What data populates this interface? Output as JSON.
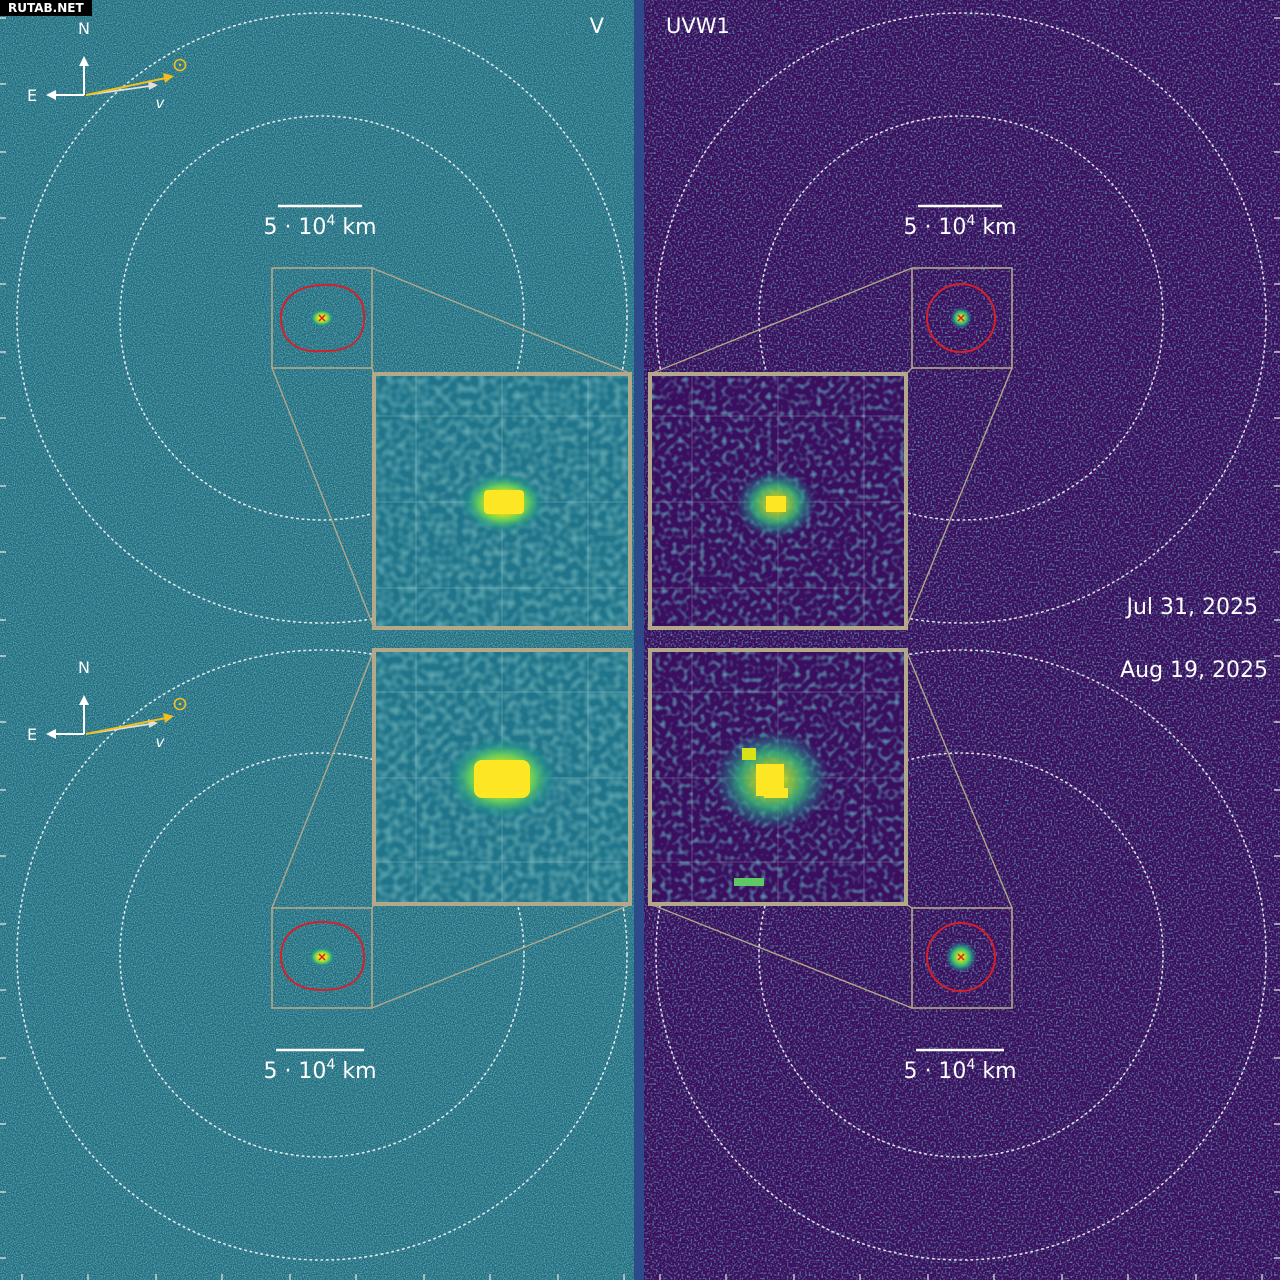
{
  "watermark": "RUTAB.NET",
  "panels": {
    "left_filter": "V",
    "right_filter": "UVW1",
    "top_date": "Jul 31, 2025",
    "bottom_date": "Aug 19, 2025"
  },
  "compass": {
    "north": "N",
    "east": "E",
    "velocity": "v",
    "sun_symbol": "⊙"
  },
  "scale_bar": {
    "text": "5 · 10",
    "exponent": "4",
    "unit": " km"
  },
  "colors": {
    "v_background": "#1f6a80",
    "uvw1_background": "#3d0d5e",
    "separator": "#2d4a8a",
    "inset_border": "#b3a88a",
    "aperture": "#d4202a",
    "arrow": "#f0c020",
    "nucleus": "#f5e21c",
    "text": "#ffffff"
  },
  "icons": [
    "north-arrow-icon",
    "east-arrow-icon",
    "velocity-arrow-icon",
    "sun-icon",
    "nucleus-marker-icon"
  ]
}
